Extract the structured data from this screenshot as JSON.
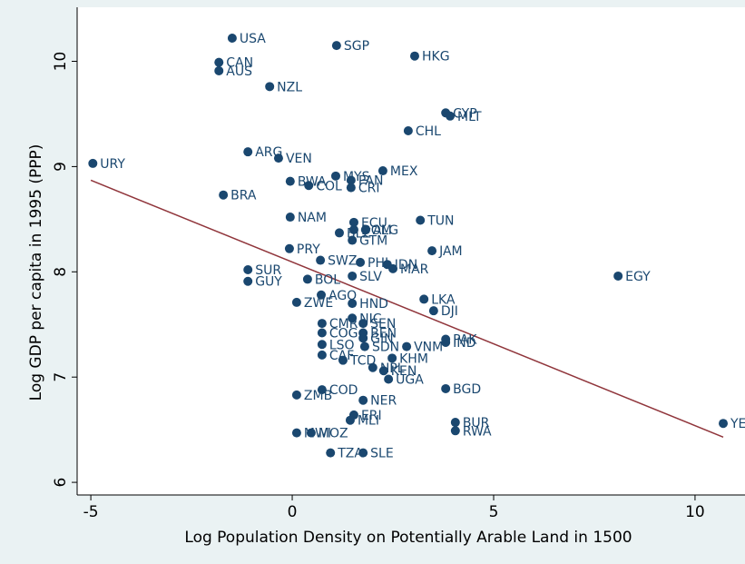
{
  "chart_data": {
    "type": "scatter",
    "x_label": "Log Population Density on Potentially Arable Land in 1500",
    "y_label": "Log GDP per capita in 1995 (PPP)",
    "xlim": [
      -5.34,
      10.88
    ],
    "ylim": [
      5.88,
      10.41
    ],
    "xticks": [
      -5,
      0,
      5,
      10
    ],
    "yticks": [
      6,
      7,
      8,
      9,
      10
    ],
    "color": "#1a476f",
    "fit_color": "#90353b",
    "fit_line": {
      "x": [
        -5,
        10.7
      ],
      "y": [
        8.87,
        6.43
      ]
    },
    "labels": [
      "USA",
      "SGP",
      "HKG",
      "CAN",
      "AUS",
      "NZL",
      "CYP",
      "MLT",
      "CHL",
      "ARG",
      "VEN",
      "URY",
      "MEX",
      "BWA",
      "MYS",
      "COL",
      "PAN",
      "CRI",
      "BRA",
      "NAM",
      "ECU",
      "TUN",
      "DOM",
      "BLZ",
      "GTM",
      "ALG",
      "JAM",
      "PRY",
      "SWZ",
      "PHL",
      "IDN",
      "MAR",
      "SUR",
      "BOL",
      "SLV",
      "GUY",
      "EGY",
      "AGO",
      "ZWE",
      "HND",
      "LKA",
      "DJI",
      "NIC",
      "CMR",
      "SEN",
      "COG",
      "BEN",
      "GIN",
      "PAK",
      "IND",
      "LSO",
      "SDN",
      "VNM",
      "CAF",
      "KHM",
      "TCD",
      "NPL",
      "KEN",
      "UGA",
      "BGD",
      "COD",
      "NER",
      "ZMB",
      "ERI",
      "MLI",
      "BUR",
      "RWA",
      "MWI",
      "MOZ",
      "TZA",
      "SLE",
      "YEM"
    ],
    "x": [
      -1.49,
      1.1,
      3.04,
      -1.82,
      -1.82,
      -0.56,
      3.81,
      3.92,
      2.88,
      -1.1,
      -0.34,
      -4.95,
      2.25,
      -0.05,
      1.08,
      0.41,
      1.46,
      1.46,
      -1.71,
      -0.05,
      1.53,
      3.18,
      1.53,
      1.17,
      1.49,
      1.82,
      3.47,
      -0.07,
      0.7,
      1.69,
      2.36,
      2.5,
      -1.1,
      0.38,
      1.49,
      -1.1,
      8.09,
      0.72,
      0.11,
      1.49,
      3.27,
      3.51,
      1.49,
      0.74,
      1.76,
      0.74,
      1.76,
      1.76,
      3.81,
      3.81,
      0.74,
      1.8,
      2.84,
      0.74,
      2.48,
      1.26,
      2.0,
      2.27,
      2.39,
      3.81,
      0.74,
      1.76,
      0.11,
      1.53,
      1.44,
      4.05,
      4.05,
      0.11,
      0.47,
      0.95,
      1.76,
      10.7
    ],
    "y": [
      10.22,
      10.15,
      10.05,
      9.99,
      9.91,
      9.76,
      9.51,
      9.48,
      9.34,
      9.14,
      9.08,
      9.03,
      8.96,
      8.86,
      8.91,
      8.82,
      8.87,
      8.8,
      8.73,
      8.52,
      8.47,
      8.49,
      8.4,
      8.37,
      8.3,
      8.4,
      8.2,
      8.22,
      8.11,
      8.09,
      8.07,
      8.03,
      8.02,
      7.93,
      7.96,
      7.91,
      7.96,
      7.78,
      7.71,
      7.7,
      7.74,
      7.63,
      7.56,
      7.51,
      7.51,
      7.42,
      7.42,
      7.37,
      7.36,
      7.33,
      7.31,
      7.29,
      7.29,
      7.21,
      7.18,
      7.16,
      7.09,
      7.06,
      6.98,
      6.89,
      6.88,
      6.78,
      6.83,
      6.64,
      6.59,
      6.57,
      6.49,
      6.47,
      6.47,
      6.28,
      6.28,
      6.56
    ]
  }
}
